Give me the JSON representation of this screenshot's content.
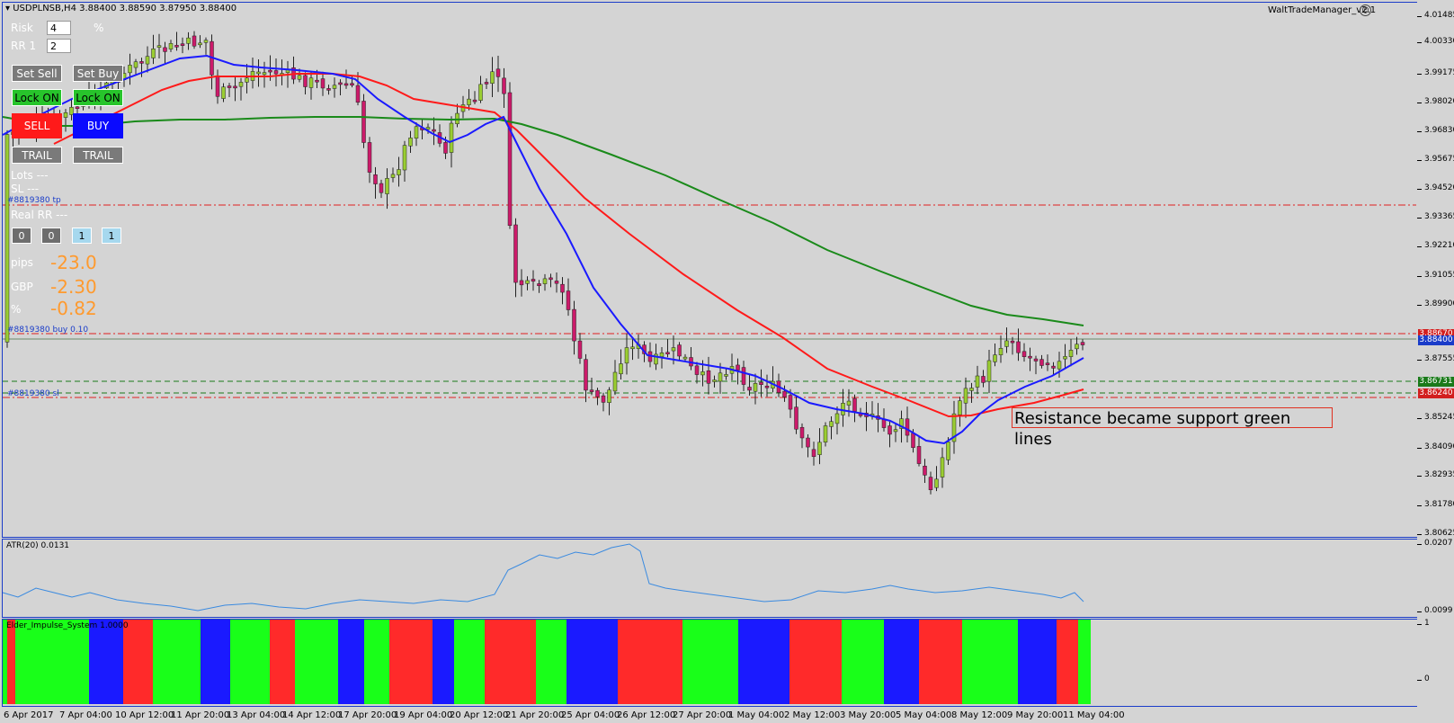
{
  "header": {
    "symbol_title": "USDPLNSB,H4  3.88400 3.88590 3.87950 3.88400",
    "ea_name": "WaltTradeManager_v2.1",
    "face_icon": "smiley-icon"
  },
  "panel": {
    "risk_label": "Risk",
    "risk_value": "4",
    "percent_sign": "%",
    "rr_label": "RR 1",
    "rr_value": "2",
    "set_sell": "Set Sell",
    "set_buy": "Set Buy",
    "lock_on_sell": "Lock ON",
    "lock_on_buy": "Lock ON",
    "sell": "SELL",
    "buy": "BUY",
    "trail_sell": "TRAIL",
    "trail_buy": "TRAIL",
    "lots": "Lots ---",
    "sl": "SL ---",
    "tp_order": "#8819380 tp",
    "real_rr": "Real RR ---",
    "counters": [
      "0",
      "0",
      "1",
      "1"
    ],
    "pips_label": "pips",
    "pips_value": "-23.0",
    "gbp_label": "GBP",
    "gbp_value": "-2.30",
    "pct_label": "%",
    "pct_value": "-0.82",
    "buy_order": "#8819380 buy 0.10",
    "sl_order": "#8819380 sl"
  },
  "annotation": "Resistance became support green lines",
  "price_ticks": [
    "4.01485",
    "4.00330",
    "3.99175",
    "3.98020",
    "3.96830",
    "3.95675",
    "3.94520",
    "3.93365",
    "3.92210",
    "3.91055",
    "3.89900",
    "3.87555",
    "3.85245",
    "3.84090",
    "3.82935",
    "3.81780",
    "3.80625"
  ],
  "price_badges": {
    "tp_line": "3.88670",
    "current": "3.88400",
    "green1": "3.86731",
    "sl_line": "3.86240"
  },
  "atr": {
    "label": "ATR(20) 0.0131",
    "max": "0.0207",
    "min": "0.0099"
  },
  "impulse": {
    "label": "Elder_Impulse_System 1.0000",
    "max": "1",
    "min": "0"
  },
  "time_labels": [
    "6 Apr 2017",
    "7 Apr 04:00",
    "10 Apr 12:00",
    "11 Apr 20:00",
    "13 Apr 04:00",
    "14 Apr 12:00",
    "17 Apr 20:00",
    "19 Apr 04:00",
    "20 Apr 12:00",
    "21 Apr 20:00",
    "25 Apr 04:00",
    "26 Apr 12:00",
    "27 Apr 20:00",
    "1 May 04:00",
    "2 May 12:00",
    "3 May 20:00",
    "5 May 04:00",
    "8 May 12:00",
    "9 May 20:00",
    "11 May 04:00"
  ],
  "colors": {
    "bull": "#9acd32",
    "bear": "#cc1a6a",
    "ma_fast": "#1a1aff",
    "ma_mid": "#ff1a1a",
    "ma_slow": "#1a8a1a"
  }
}
